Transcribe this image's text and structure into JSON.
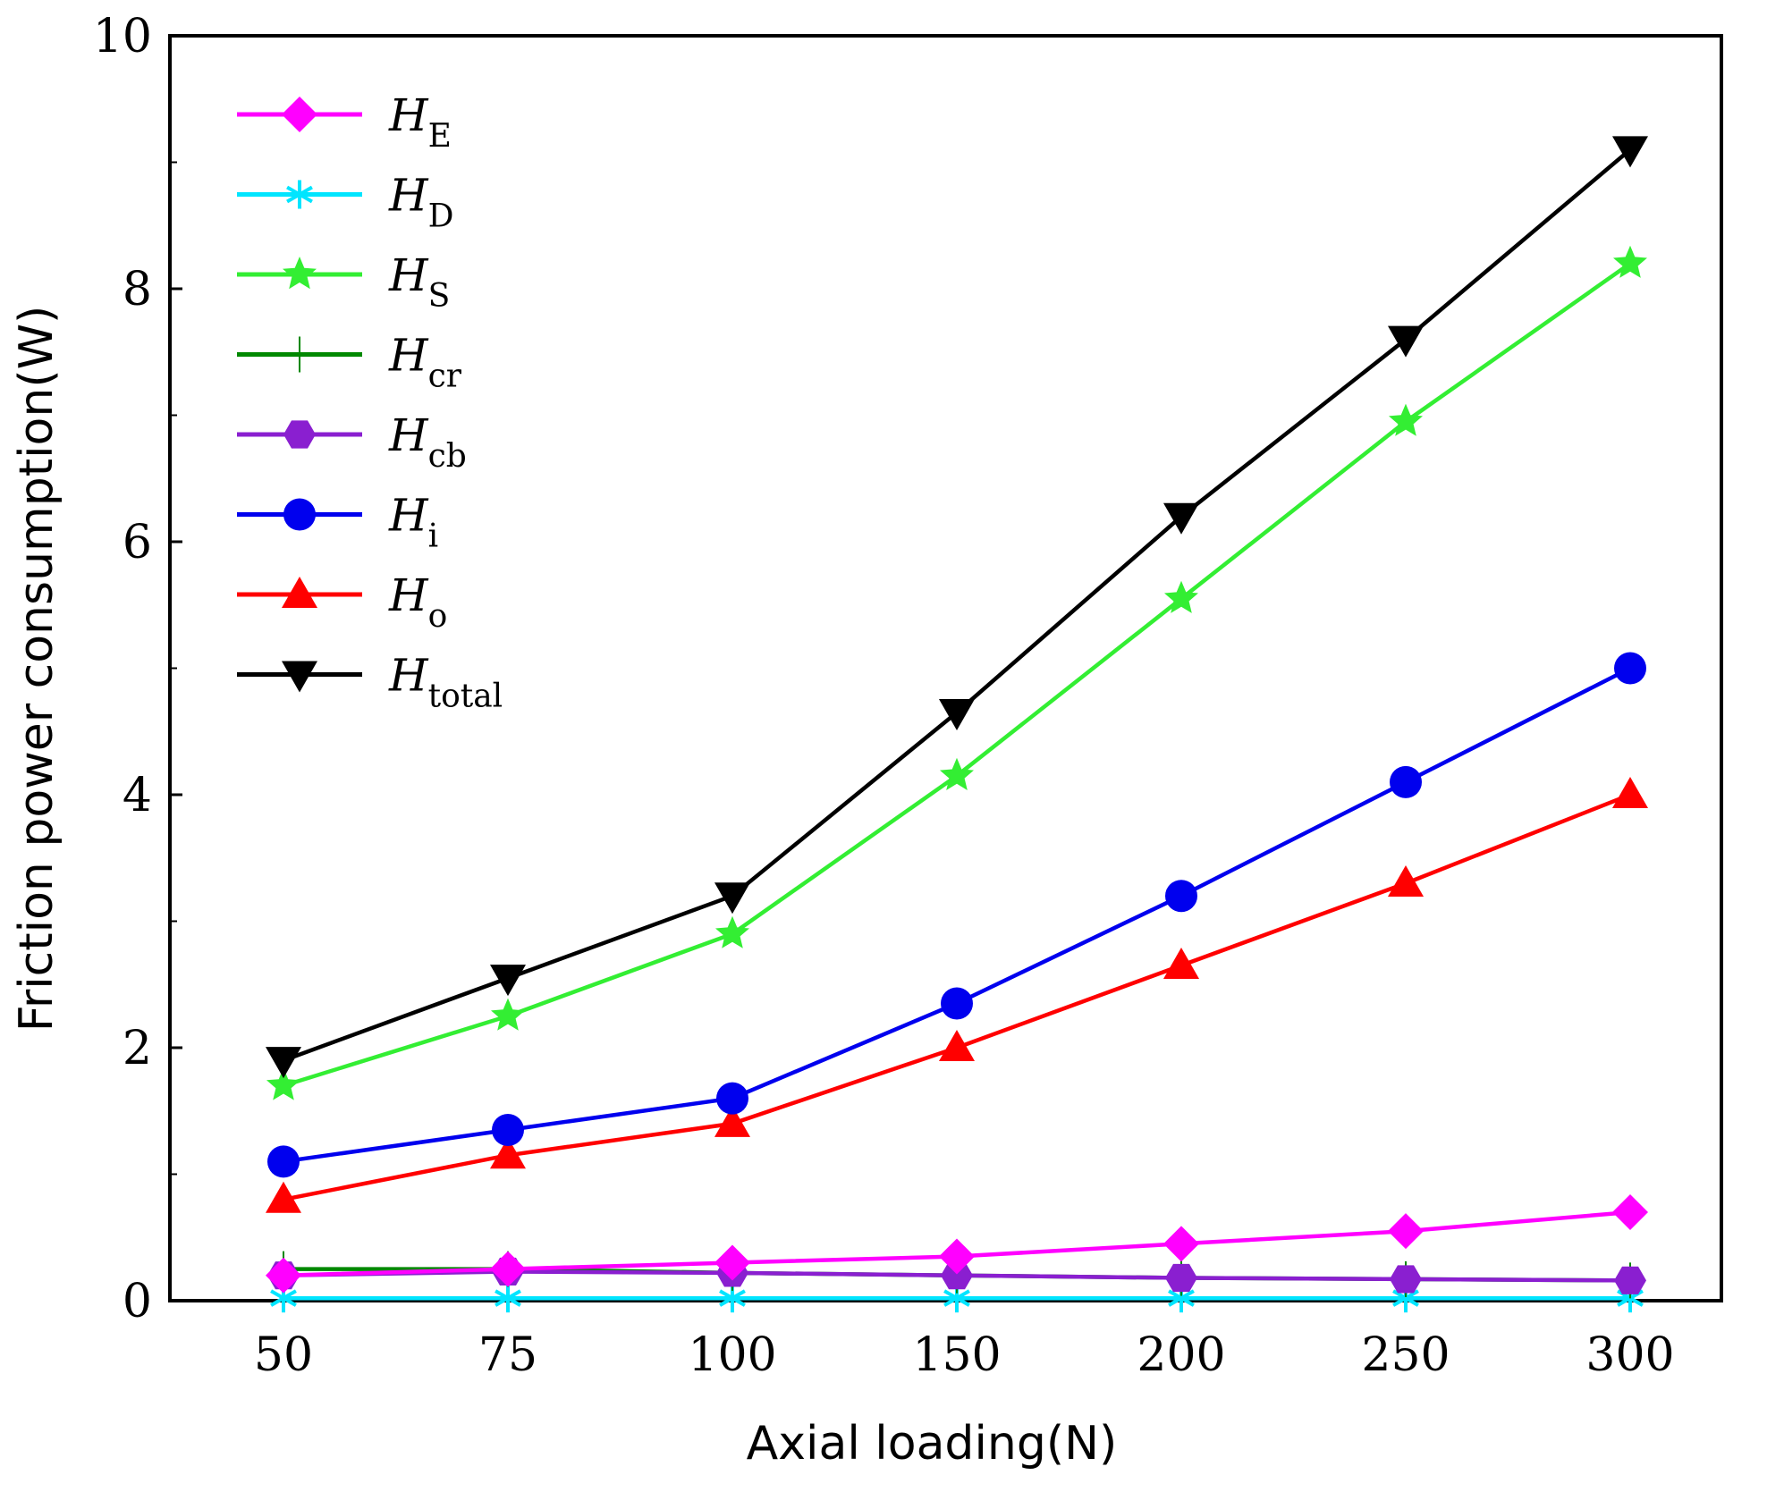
{
  "chart_data": {
    "type": "line",
    "title": "",
    "xlabel": "Axial loading(N)",
    "ylabel": "Friction power consumption(W)",
    "categories": [
      "50",
      "75",
      "100",
      "150",
      "200",
      "250",
      "300"
    ],
    "ylim": [
      0,
      10
    ],
    "yticks": [
      "0",
      "2",
      "4",
      "6",
      "8",
      "10"
    ],
    "grid": false,
    "legend_position": "top-left",
    "series": [
      {
        "name": "H_E",
        "base": "H",
        "sub": "E",
        "color": "#ff00ff",
        "marker": "diamond",
        "values": [
          0.2,
          0.25,
          0.3,
          0.35,
          0.45,
          0.55,
          0.7
        ]
      },
      {
        "name": "H_D",
        "base": "H",
        "sub": "D",
        "color": "#00e5ff",
        "marker": "asterisk",
        "values": [
          0.02,
          0.02,
          0.02,
          0.02,
          0.02,
          0.02,
          0.02
        ]
      },
      {
        "name": "H_S",
        "base": "H",
        "sub": "S",
        "color": "#33ee33",
        "marker": "star",
        "values": [
          1.7,
          2.25,
          2.9,
          4.15,
          5.55,
          6.95,
          8.2
        ]
      },
      {
        "name": "H_cr",
        "base": "H",
        "sub": "cr",
        "color": "#008800",
        "marker": "plus",
        "values": [
          0.25,
          0.25,
          0.22,
          0.2,
          0.18,
          0.17,
          0.16
        ]
      },
      {
        "name": "H_cb",
        "base": "H",
        "sub": "cb",
        "color": "#8a1fd0",
        "marker": "hexagon",
        "values": [
          0.2,
          0.23,
          0.22,
          0.2,
          0.18,
          0.17,
          0.16
        ]
      },
      {
        "name": "H_i",
        "base": "H",
        "sub": "i",
        "color": "#0000ee",
        "marker": "circle",
        "values": [
          1.1,
          1.35,
          1.6,
          2.35,
          3.2,
          4.1,
          5.0
        ]
      },
      {
        "name": "H_o",
        "base": "H",
        "sub": "o",
        "color": "#ff0000",
        "marker": "triangle-up",
        "values": [
          0.8,
          1.15,
          1.4,
          2.0,
          2.65,
          3.3,
          4.0
        ]
      },
      {
        "name": "H_total",
        "base": "H",
        "sub": "total",
        "color": "#000000",
        "marker": "triangle-down",
        "values": [
          1.9,
          2.55,
          3.2,
          4.65,
          6.2,
          7.6,
          9.1
        ]
      }
    ]
  }
}
